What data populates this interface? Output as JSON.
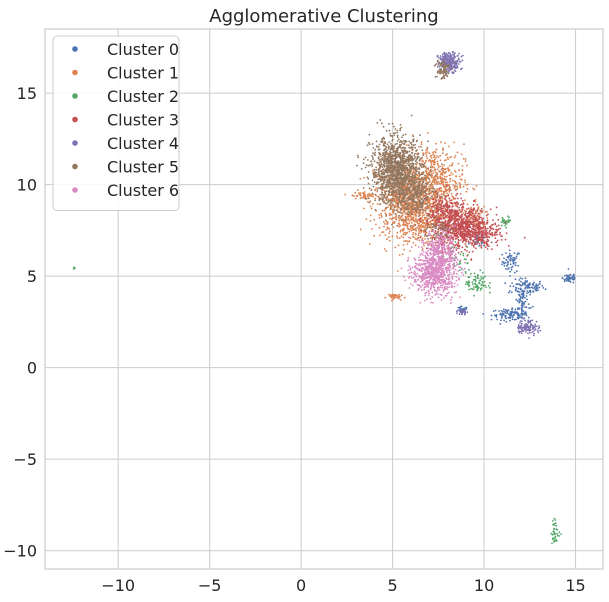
{
  "chart_data": {
    "type": "scatter",
    "title": "Agglomerative Clustering",
    "xlabel": "",
    "ylabel": "",
    "xlim": [
      -14,
      16.5
    ],
    "ylim": [
      -11,
      18.5
    ],
    "xticks": [
      -10,
      -5,
      0,
      5,
      10,
      15
    ],
    "xtick_labels": [
      "−10",
      "−5",
      "0",
      "5",
      "10",
      "15"
    ],
    "yticks": [
      -10,
      -5,
      0,
      5,
      10,
      15
    ],
    "ytick_labels": [
      "−10",
      "−5",
      "0",
      "5",
      "10",
      "15"
    ],
    "grid": true,
    "legend_position": "top-left",
    "series": [
      {
        "name": "Cluster 0",
        "color": "#4c72b0",
        "regions": [
          {
            "cx": 11.5,
            "cy": 5.8,
            "sx": 0.25,
            "sy": 0.3,
            "n": 60
          },
          {
            "cx": 12.3,
            "cy": 4.4,
            "sx": 0.5,
            "sy": 0.2,
            "n": 90
          },
          {
            "cx": 12.1,
            "cy": 3.5,
            "sx": 0.2,
            "sy": 0.6,
            "n": 90
          },
          {
            "cx": 11.4,
            "cy": 2.9,
            "sx": 0.5,
            "sy": 0.15,
            "n": 90
          },
          {
            "cx": 14.7,
            "cy": 4.9,
            "sx": 0.2,
            "sy": 0.15,
            "n": 50
          },
          {
            "cx": 8.8,
            "cy": 3.1,
            "sx": 0.15,
            "sy": 0.12,
            "n": 30
          },
          {
            "cx": 9.7,
            "cy": 6.9,
            "sx": 0.2,
            "sy": 0.15,
            "n": 30
          }
        ]
      },
      {
        "name": "Cluster 1",
        "color": "#dd8452",
        "regions": [
          {
            "cx": 5.8,
            "cy": 9.3,
            "sx": 0.9,
            "sy": 1.0,
            "n": 900
          },
          {
            "cx": 7.3,
            "cy": 10.2,
            "sx": 0.8,
            "sy": 1.0,
            "n": 500
          },
          {
            "cx": 6.5,
            "cy": 8.0,
            "sx": 0.9,
            "sy": 0.6,
            "n": 300
          },
          {
            "cx": 3.4,
            "cy": 9.4,
            "sx": 0.3,
            "sy": 0.12,
            "n": 40
          },
          {
            "cx": 5.0,
            "cy": 3.9,
            "sx": 0.2,
            "sy": 0.08,
            "n": 40
          },
          {
            "cx": 9.3,
            "cy": 8.3,
            "sx": 0.5,
            "sy": 0.4,
            "n": 80
          }
        ]
      },
      {
        "name": "Cluster 2",
        "color": "#55a868",
        "regions": [
          {
            "cx": 9.6,
            "cy": 4.6,
            "sx": 0.3,
            "sy": 0.3,
            "n": 80
          },
          {
            "cx": 8.5,
            "cy": 6.0,
            "sx": 0.4,
            "sy": 0.4,
            "n": 40
          },
          {
            "cx": 11.2,
            "cy": 8.0,
            "sx": 0.15,
            "sy": 0.12,
            "n": 30
          },
          {
            "cx": 13.9,
            "cy": -9.0,
            "sx": 0.12,
            "sy": 0.35,
            "n": 40
          },
          {
            "cx": -12.4,
            "cy": 5.45,
            "sx": 0.03,
            "sy": 0.03,
            "n": 4
          }
        ]
      },
      {
        "name": "Cluster 3",
        "color": "#c44e52",
        "regions": [
          {
            "cx": 8.8,
            "cy": 7.6,
            "sx": 0.8,
            "sy": 0.55,
            "n": 800
          },
          {
            "cx": 7.9,
            "cy": 8.6,
            "sx": 0.5,
            "sy": 0.5,
            "n": 200
          },
          {
            "cx": 10.2,
            "cy": 7.2,
            "sx": 0.4,
            "sy": 0.3,
            "n": 80
          }
        ]
      },
      {
        "name": "Cluster 4",
        "color": "#8172b3",
        "regions": [
          {
            "cx": 8.1,
            "cy": 16.7,
            "sx": 0.3,
            "sy": 0.25,
            "n": 250
          },
          {
            "cx": 12.4,
            "cy": 2.2,
            "sx": 0.3,
            "sy": 0.2,
            "n": 100
          },
          {
            "cx": 8.8,
            "cy": 3.05,
            "sx": 0.12,
            "sy": 0.08,
            "n": 25
          }
        ]
      },
      {
        "name": "Cluster 5",
        "color": "#937860",
        "regions": [
          {
            "cx": 5.2,
            "cy": 10.8,
            "sx": 0.7,
            "sy": 0.9,
            "n": 1200
          },
          {
            "cx": 6.2,
            "cy": 9.5,
            "sx": 0.6,
            "sy": 0.6,
            "n": 300
          },
          {
            "cx": 7.7,
            "cy": 16.3,
            "sx": 0.2,
            "sy": 0.3,
            "n": 80
          },
          {
            "cx": 7.5,
            "cy": 7.5,
            "sx": 0.4,
            "sy": 0.3,
            "n": 60
          }
        ]
      },
      {
        "name": "Cluster 6",
        "color": "#da8bc3",
        "regions": [
          {
            "cx": 7.3,
            "cy": 5.2,
            "sx": 0.6,
            "sy": 0.6,
            "n": 700
          },
          {
            "cx": 7.6,
            "cy": 6.5,
            "sx": 0.4,
            "sy": 0.5,
            "n": 250
          }
        ]
      }
    ]
  }
}
